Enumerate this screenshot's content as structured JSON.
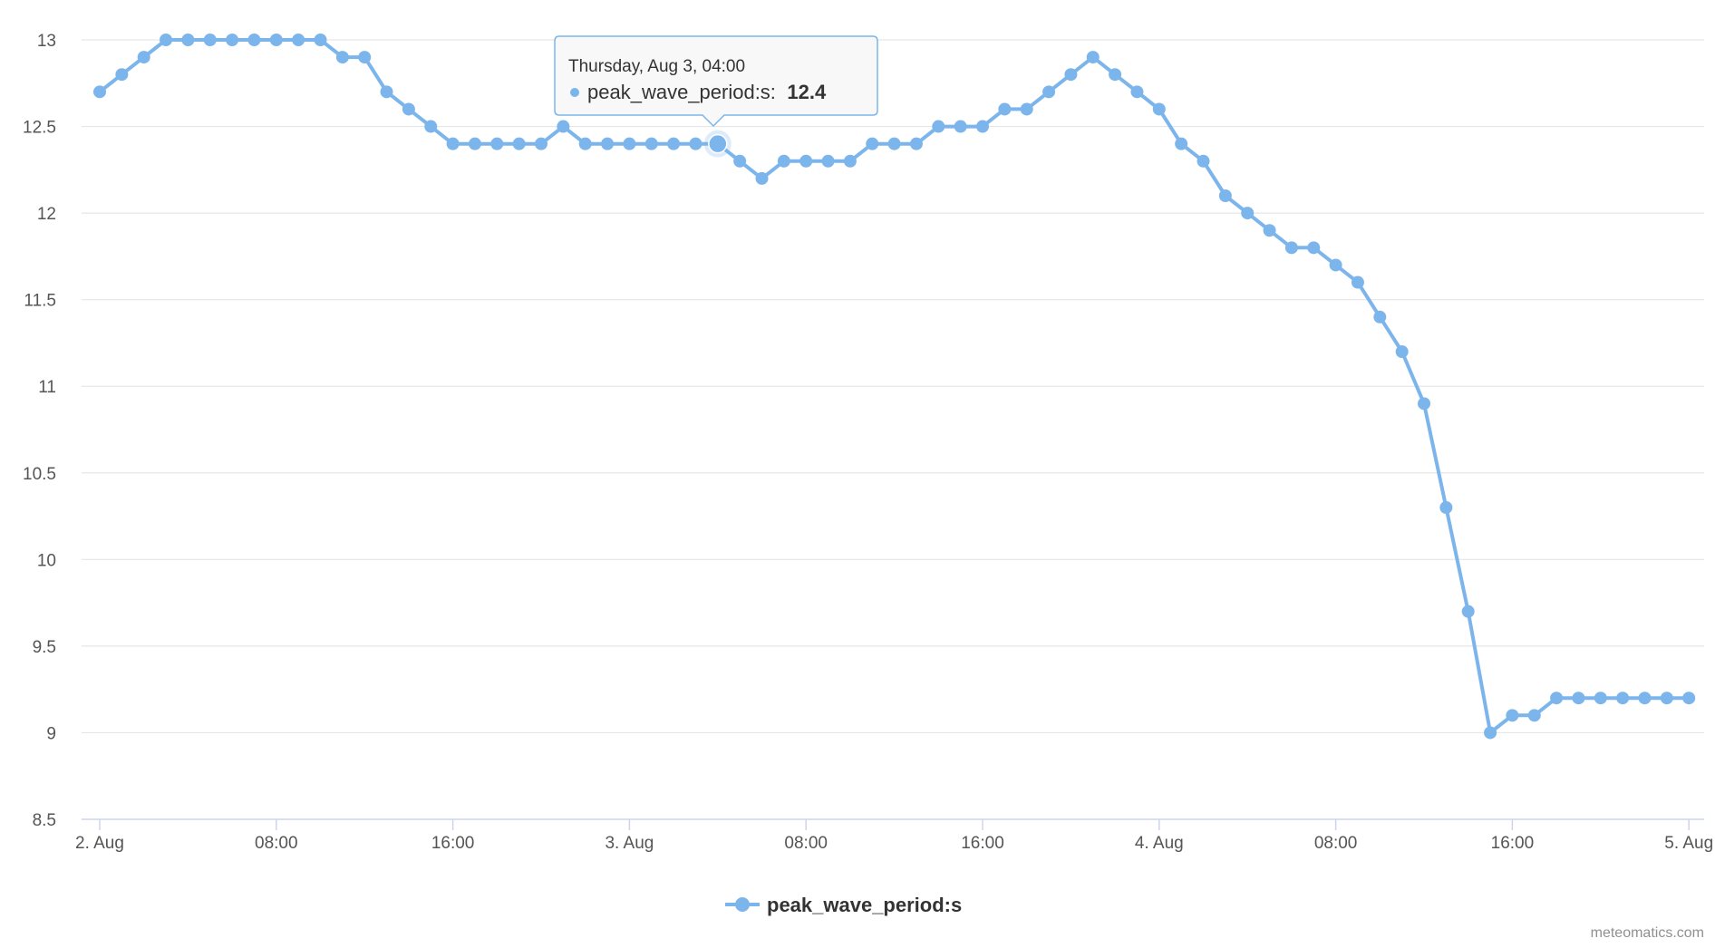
{
  "chart_data": {
    "type": "line",
    "y_ticks": [
      "8.5",
      "9",
      "9.5",
      "10",
      "10.5",
      "11",
      "11.5",
      "12",
      "12.5",
      "13"
    ],
    "ylim": [
      8.5,
      13
    ],
    "x_ticks": [
      {
        "hour": 0,
        "label": "2. Aug"
      },
      {
        "hour": 8,
        "label": "08:00"
      },
      {
        "hour": 16,
        "label": "16:00"
      },
      {
        "hour": 24,
        "label": "3. Aug"
      },
      {
        "hour": 32,
        "label": "08:00"
      },
      {
        "hour": 40,
        "label": "16:00"
      },
      {
        "hour": 48,
        "label": "4. Aug"
      },
      {
        "hour": 56,
        "label": "08:00"
      },
      {
        "hour": 64,
        "label": "16:00"
      },
      {
        "hour": 72,
        "label": "5. Aug"
      }
    ],
    "x_start": "2. Aug 00:00",
    "x_step": "1 hour",
    "series": [
      {
        "name": "peak_wave_period:s",
        "color": "#7cb5ec",
        "values": [
          12.7,
          12.8,
          12.9,
          13.0,
          13.0,
          13.0,
          13.0,
          13.0,
          13.0,
          13.0,
          13.0,
          12.9,
          12.9,
          12.7,
          12.6,
          12.5,
          12.4,
          12.4,
          12.4,
          12.4,
          12.4,
          12.5,
          12.4,
          12.4,
          12.4,
          12.4,
          12.4,
          12.4,
          12.4,
          12.3,
          12.2,
          12.3,
          12.3,
          12.3,
          12.3,
          12.4,
          12.4,
          12.4,
          12.5,
          12.5,
          12.5,
          12.6,
          12.6,
          12.7,
          12.8,
          12.9,
          12.8,
          12.7,
          12.6,
          12.4,
          12.3,
          12.1,
          12.0,
          11.9,
          11.8,
          11.8,
          11.7,
          11.6,
          11.4,
          11.2,
          10.9,
          10.3,
          9.7,
          9.0,
          9.1,
          9.1,
          9.2,
          9.2,
          9.2,
          9.2,
          9.2,
          9.2,
          9.2
        ]
      }
    ],
    "legend": {
      "position": "bottom-center",
      "label": "peak_wave_period:s"
    },
    "tooltip": {
      "title": "Thursday, Aug 3, 04:00",
      "series_label": "peak_wave_period:s:",
      "value": "12.4",
      "point_hour": 28
    },
    "grid": true
  },
  "credits": "meteomatics.com"
}
